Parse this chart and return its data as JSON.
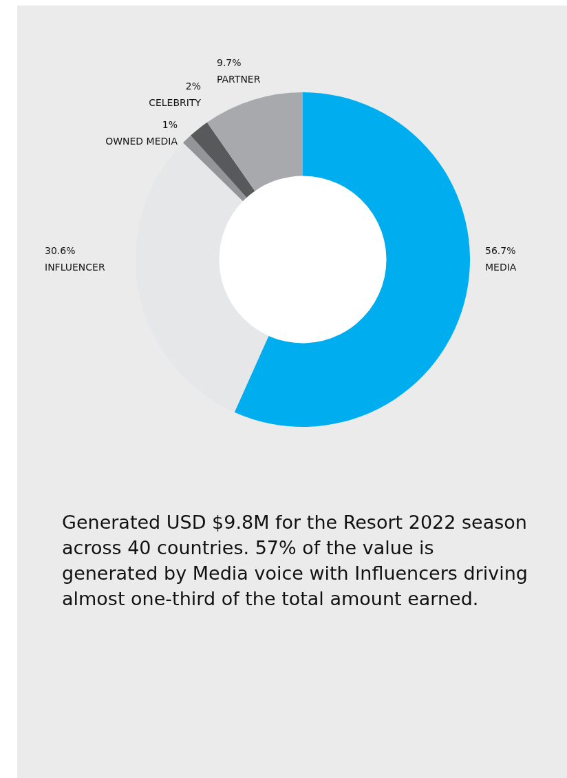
{
  "chart_data": {
    "type": "donut",
    "categories": [
      "MEDIA",
      "INFLUENCER",
      "OWNED MEDIA",
      "CELEBRITY",
      "PARTNER"
    ],
    "values": [
      56.7,
      30.6,
      1,
      2,
      9.7
    ],
    "colors": [
      "#00aeef",
      "#e6e7e8",
      "#939598",
      "#58595b",
      "#a7a9ac"
    ],
    "value_labels": [
      "56.7%",
      "30.6%",
      "1%",
      "2%",
      "9.7%"
    ],
    "legend": false,
    "annotations": [
      "Generated USD $9.8M for the Resort 2022 season across 40 countries. 57% of the value is generated by Media voice with Influencers driving almost one-third of the total amount earned."
    ]
  }
}
